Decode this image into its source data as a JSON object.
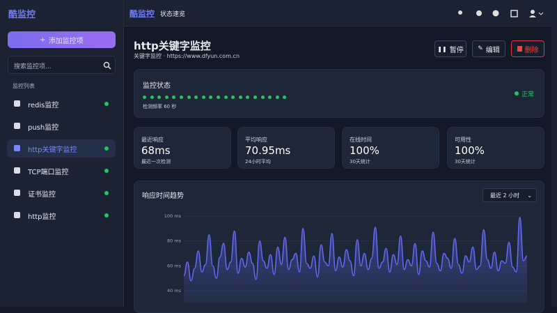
{
  "sidebar": {
    "brand": "酷监控",
    "add_button": "添加监控项",
    "search_placeholder": "搜索监控项...",
    "section": "监控列表",
    "monitors": [
      "redis监控",
      "push监控",
      "http关键字监控",
      "TCP端口监控",
      "证书监控",
      "http监控"
    ]
  },
  "topbar": {
    "brand": "酷监控",
    "nav": "状态速览"
  },
  "header": {
    "title": "http关键字监控",
    "subtitle": "关键字监控 · https://www.dfyun.com.cn",
    "buttons": [
      "暂停",
      "编辑",
      "删除"
    ]
  },
  "status": {
    "title": "监控状态",
    "interval": "检测频率 60 秒",
    "state": "正常"
  },
  "stats": [
    {
      "label": "最近响应",
      "value": "68ms",
      "note": "最近一次检测"
    },
    {
      "label": "平均响应",
      "value": "70.95ms",
      "note": "24小时平均"
    },
    {
      "label": "在线时间",
      "value": "100%",
      "note": "30天统计"
    },
    {
      "label": "可用性",
      "value": "100%",
      "note": "30天统计"
    }
  ],
  "range_select": "最近 2 小时",
  "chart_data": {
    "type": "line",
    "title": "响应时间趋势",
    "color": "#6366f1",
    "grid": true,
    "ylim": [
      30,
      100
    ],
    "yticks": [
      {
        "value": 40,
        "label": "40 ms"
      },
      {
        "value": 60,
        "label": "60 ms"
      },
      {
        "value": 80,
        "label": "80 ms"
      },
      {
        "value": 100,
        "label": "100 ms"
      }
    ],
    "values": [
      52,
      63,
      48,
      58,
      72,
      55,
      61,
      85,
      60,
      50,
      67,
      78,
      57,
      63,
      88,
      54,
      66,
      59,
      71,
      62,
      49,
      80,
      64,
      58,
      69,
      53,
      75,
      61,
      83,
      57,
      65,
      70,
      55,
      90,
      62,
      58,
      68,
      51,
      77,
      63,
      60,
      86,
      56,
      67,
      59,
      73,
      64,
      52,
      81,
      60,
      70,
      57,
      66,
      91,
      58,
      63,
      74,
      55,
      69,
      61,
      84,
      57,
      65,
      60,
      78,
      53,
      72,
      64,
      59,
      87,
      62,
      56,
      70,
      66,
      58,
      82,
      61,
      54,
      68,
      63,
      75,
      57,
      60,
      89,
      65,
      58,
      71,
      56,
      64,
      62,
      79,
      59,
      55,
      99,
      64,
      68
    ]
  }
}
